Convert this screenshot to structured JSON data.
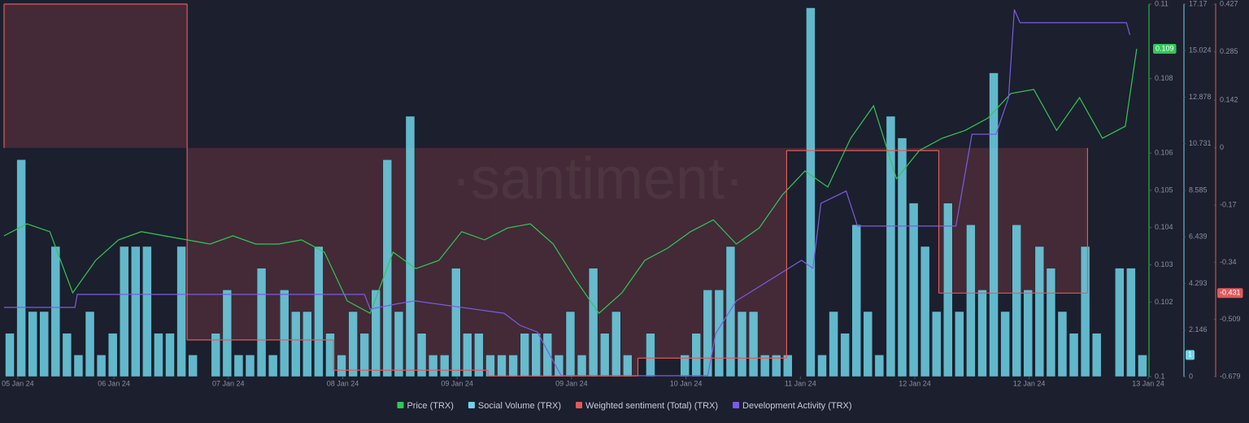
{
  "chart_data": {
    "type": "line",
    "watermark": "·santiment·",
    "xlim": [
      0,
      100
    ],
    "xticks": [
      {
        "value": 1.2,
        "label": "05 Jan 24"
      },
      {
        "value": 9.6,
        "label": "06 Jan 24"
      },
      {
        "value": 19.6,
        "label": "07 Jan 24"
      },
      {
        "value": 29.6,
        "label": "08 Jan 24"
      },
      {
        "value": 39.6,
        "label": "09 Jan 24"
      },
      {
        "value": 49.6,
        "label": "09 Jan 24"
      },
      {
        "value": 59.6,
        "label": "10 Jan 24"
      },
      {
        "value": 69.6,
        "label": "11 Jan 24"
      },
      {
        "value": 79.6,
        "label": "12 Jan 24"
      },
      {
        "value": 89.6,
        "label": "12 Jan 24"
      },
      {
        "value": 100,
        "label": "13 Jan 24"
      }
    ],
    "ylim": [
      0.1,
      0.11
    ],
    "yticks": [
      0.1,
      0.102,
      0.103,
      0.104,
      0.105,
      0.106,
      0.108,
      0.11
    ],
    "y2lim": [
      0,
      17.17
    ],
    "y2ticks": [
      0,
      2.146,
      4.293,
      6.439,
      8.585,
      10.731,
      12.878,
      15.024,
      17.17
    ],
    "y3lim": [
      -0.679,
      0.427
    ],
    "y3ticks": [
      -0.679,
      -0.509,
      -0.34,
      -0.17,
      0,
      0.142,
      0.285,
      0.427
    ],
    "series": [
      {
        "name": "Price (TRX)",
        "type": "line",
        "axis": "y",
        "color": "#2fc85a",
        "last_label": "0.109",
        "x": [
          0,
          2,
          4,
          6,
          8,
          10,
          12,
          14,
          16,
          18,
          20,
          22,
          24,
          26,
          28,
          30,
          32,
          34,
          36,
          38,
          40,
          42,
          44,
          46,
          48,
          50,
          52,
          54,
          56,
          58,
          60,
          62,
          64,
          66,
          68,
          70,
          72,
          74,
          76,
          78,
          80,
          82,
          84,
          86,
          88,
          90,
          92,
          94,
          96,
          98,
          99
        ],
        "values": [
          0.10378,
          0.1041,
          0.10389,
          0.10225,
          0.10312,
          0.10367,
          0.10389,
          0.10378,
          0.10367,
          0.10356,
          0.10378,
          0.10356,
          0.10356,
          0.10367,
          0.10334,
          0.10203,
          0.1017,
          0.10334,
          0.1029,
          0.10312,
          0.10389,
          0.10367,
          0.10399,
          0.1041,
          0.10356,
          0.10258,
          0.1017,
          0.10225,
          0.10312,
          0.10345,
          0.10389,
          0.10421,
          0.10356,
          0.10399,
          0.10487,
          0.10552,
          0.10509,
          0.1064,
          0.10727,
          0.10531,
          0.10607,
          0.1064,
          0.10661,
          0.10694,
          0.1076,
          0.10771,
          0.10661,
          0.10749,
          0.1064,
          0.10672,
          0.1088
        ]
      },
      {
        "name": "Social Volume (TRX)",
        "type": "bar",
        "axis": "y2",
        "color": "#6fd3e8",
        "last_label": "1",
        "x": [
          0.5,
          1.5,
          2.5,
          3.5,
          4.5,
          5.5,
          6.5,
          7.5,
          8.5,
          9.5,
          10.5,
          11.5,
          12.5,
          13.5,
          14.5,
          15.5,
          16.5,
          17.5,
          18.5,
          19.5,
          20.5,
          21.5,
          22.5,
          23.5,
          24.5,
          25.5,
          26.5,
          27.5,
          28.5,
          29.5,
          30.5,
          31.5,
          32.5,
          33.5,
          34.5,
          35.5,
          36.5,
          37.5,
          38.5,
          39.5,
          40.5,
          41.5,
          42.5,
          43.5,
          44.5,
          45.5,
          46.5,
          47.5,
          48.5,
          49.5,
          50.5,
          51.5,
          52.5,
          53.5,
          54.5,
          55.5,
          56.5,
          57.5,
          58.5,
          59.5,
          60.5,
          61.5,
          62.5,
          63.5,
          64.5,
          65.5,
          66.5,
          67.5,
          68.5,
          69.5,
          70.5,
          71.5,
          72.5,
          73.5,
          74.5,
          75.5,
          76.5,
          77.5,
          78.5,
          79.5,
          80.5,
          81.5,
          82.5,
          83.5,
          84.5,
          85.5,
          86.5,
          87.5,
          88.5,
          89.5,
          90.5,
          91.5,
          92.5,
          93.5,
          94.5,
          95.5,
          96.5,
          97.5,
          98.5,
          99.5
        ],
        "values": [
          2,
          10,
          3,
          3,
          6,
          2,
          1,
          3,
          1,
          2,
          6,
          6,
          6,
          2,
          2,
          6,
          1,
          0,
          2,
          4,
          1,
          1,
          5,
          1,
          4,
          3,
          3,
          6,
          2,
          1,
          3,
          2,
          4,
          10,
          3,
          12,
          2,
          1,
          1,
          5,
          2,
          2,
          1,
          1,
          1,
          2,
          2,
          2,
          1,
          3,
          1,
          5,
          2,
          3,
          1,
          0,
          2,
          0,
          0,
          1,
          2,
          4,
          4,
          6,
          3,
          3,
          1,
          1,
          1,
          0,
          17,
          1,
          3,
          2,
          7,
          3,
          1,
          12,
          11,
          8,
          6,
          3,
          8,
          3,
          7,
          4,
          14,
          3,
          7,
          4,
          6,
          5,
          3,
          2,
          6,
          2,
          0,
          5,
          5,
          1
        ]
      },
      {
        "name": "Weighted sentiment (Total) (TRX)",
        "type": "step",
        "axis": "y3",
        "color": "#e05a5a",
        "last_label": "-0.431",
        "bins": [
          0,
          16,
          28.8,
          42.3,
          55.4,
          68.4,
          81.7,
          94.7
        ],
        "values": [
          0.427,
          -0.57,
          -0.66,
          -0.677,
          -0.624,
          -0.008,
          -0.431
        ]
      },
      {
        "name": "Development Activity (TRX)",
        "type": "line",
        "axis": "y2",
        "color": "#7a5be6",
        "x": [
          0,
          6.2,
          6.4,
          31.5,
          32,
          34.5,
          35.9,
          43.7,
          45.1,
          46.6,
          48.7,
          61.5,
          62.2,
          64,
          69.7,
          70.7,
          71.4,
          73.6,
          74.6,
          83.2,
          84.6,
          86.7,
          87.8,
          88.3,
          88.8,
          98.1,
          98.4
        ],
        "values": [
          3.19,
          3.19,
          3.79,
          3.79,
          3.11,
          3.37,
          3.49,
          2.92,
          2.36,
          2.06,
          0.04,
          0.04,
          1.99,
          3.49,
          5.36,
          4.99,
          7.99,
          8.55,
          6.94,
          6.94,
          11.17,
          11.17,
          12.86,
          16.91,
          16.31,
          16.31,
          15.75
        ]
      }
    ]
  }
}
